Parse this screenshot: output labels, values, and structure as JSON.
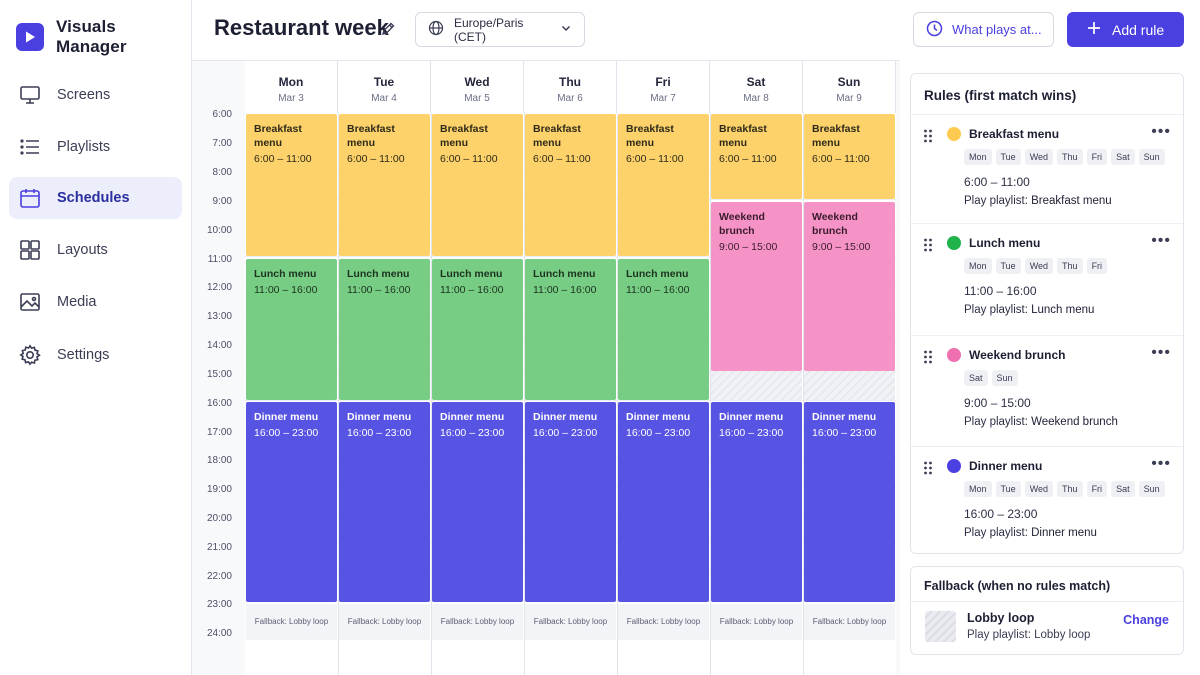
{
  "app": {
    "name": "Visuals Manager"
  },
  "sidebar": {
    "items": [
      {
        "label": "Screens",
        "icon": "monitor-icon"
      },
      {
        "label": "Playlists",
        "icon": "list-icon"
      },
      {
        "label": "Schedules",
        "icon": "calendar-icon",
        "active": true
      },
      {
        "label": "Layouts",
        "icon": "grid-icon"
      },
      {
        "label": "Media",
        "icon": "image-icon"
      },
      {
        "label": "Settings",
        "icon": "gear-icon"
      }
    ]
  },
  "header": {
    "title": "Restaurant week",
    "timezone": "Europe/Paris (CET)",
    "what_plays_label": "What plays at...",
    "add_rule_label": "Add rule"
  },
  "calendar": {
    "days": [
      {
        "name": "Mon",
        "date": "Mar 3"
      },
      {
        "name": "Tue",
        "date": "Mar 4"
      },
      {
        "name": "Wed",
        "date": "Mar 5"
      },
      {
        "name": "Thu",
        "date": "Mar 6"
      },
      {
        "name": "Fri",
        "date": "Mar 7"
      },
      {
        "name": "Sat",
        "date": "Mar 8"
      },
      {
        "name": "Sun",
        "date": "Mar 9"
      }
    ],
    "hours": [
      "6:00",
      "7:00",
      "8:00",
      "9:00",
      "10:00",
      "11:00",
      "12:00",
      "13:00",
      "14:00",
      "15:00",
      "16:00",
      "17:00",
      "18:00",
      "19:00",
      "20:00",
      "21:00",
      "22:00",
      "23:00",
      "24:00"
    ],
    "events": {
      "breakfast": {
        "name": "Breakfast menu",
        "time": "6:00 – 11:00"
      },
      "lunch": {
        "name": "Lunch menu",
        "time": "11:00 – 16:00"
      },
      "brunch": {
        "name": "Weekend brunch",
        "time": "9:00 – 15:00"
      },
      "dinner": {
        "name": "Dinner menu",
        "time": "16:00 – 23:00"
      }
    },
    "fallback_label": "Fallback: Lobby loop"
  },
  "rules_panel": {
    "title": "Rules (first match wins)",
    "rules": [
      {
        "name": "Breakfast menu",
        "color": "#fdc94f",
        "days": [
          "Mon",
          "Tue",
          "Wed",
          "Thu",
          "Fri",
          "Sat",
          "Sun"
        ],
        "time": "6:00  –  11:00",
        "playlist_prefix": "Play playlist: ",
        "playlist": "Breakfast menu"
      },
      {
        "name": "Lunch menu",
        "color": "#1fb34a",
        "days": [
          "Mon",
          "Tue",
          "Wed",
          "Thu",
          "Fri"
        ],
        "time": "11:00  –  16:00",
        "playlist_prefix": "Play playlist: ",
        "playlist": "Lunch menu"
      },
      {
        "name": "Weekend brunch",
        "color": "#f06fb0",
        "days": [
          "Sat",
          "Sun"
        ],
        "time": "9:00  –  15:00",
        "playlist_prefix": "Play playlist: ",
        "playlist": "Weekend brunch"
      },
      {
        "name": "Dinner menu",
        "color": "#4a3fe0",
        "days": [
          "Mon",
          "Tue",
          "Wed",
          "Thu",
          "Fri",
          "Sat",
          "Sun"
        ],
        "time": "16:00  –  23:00",
        "playlist_prefix": "Play playlist: ",
        "playlist": "Dinner menu"
      }
    ]
  },
  "fallback": {
    "title": "Fallback (when no rules match)",
    "name": "Lobby loop",
    "playlist": "Play playlist: Lobby loop",
    "change_label": "Change"
  },
  "colors": {
    "accent": "#4a3fe0",
    "breakfast": "#fdd26a",
    "lunch": "#77cd84",
    "brunch": "#f693c6",
    "dinner": "#5753e3"
  }
}
